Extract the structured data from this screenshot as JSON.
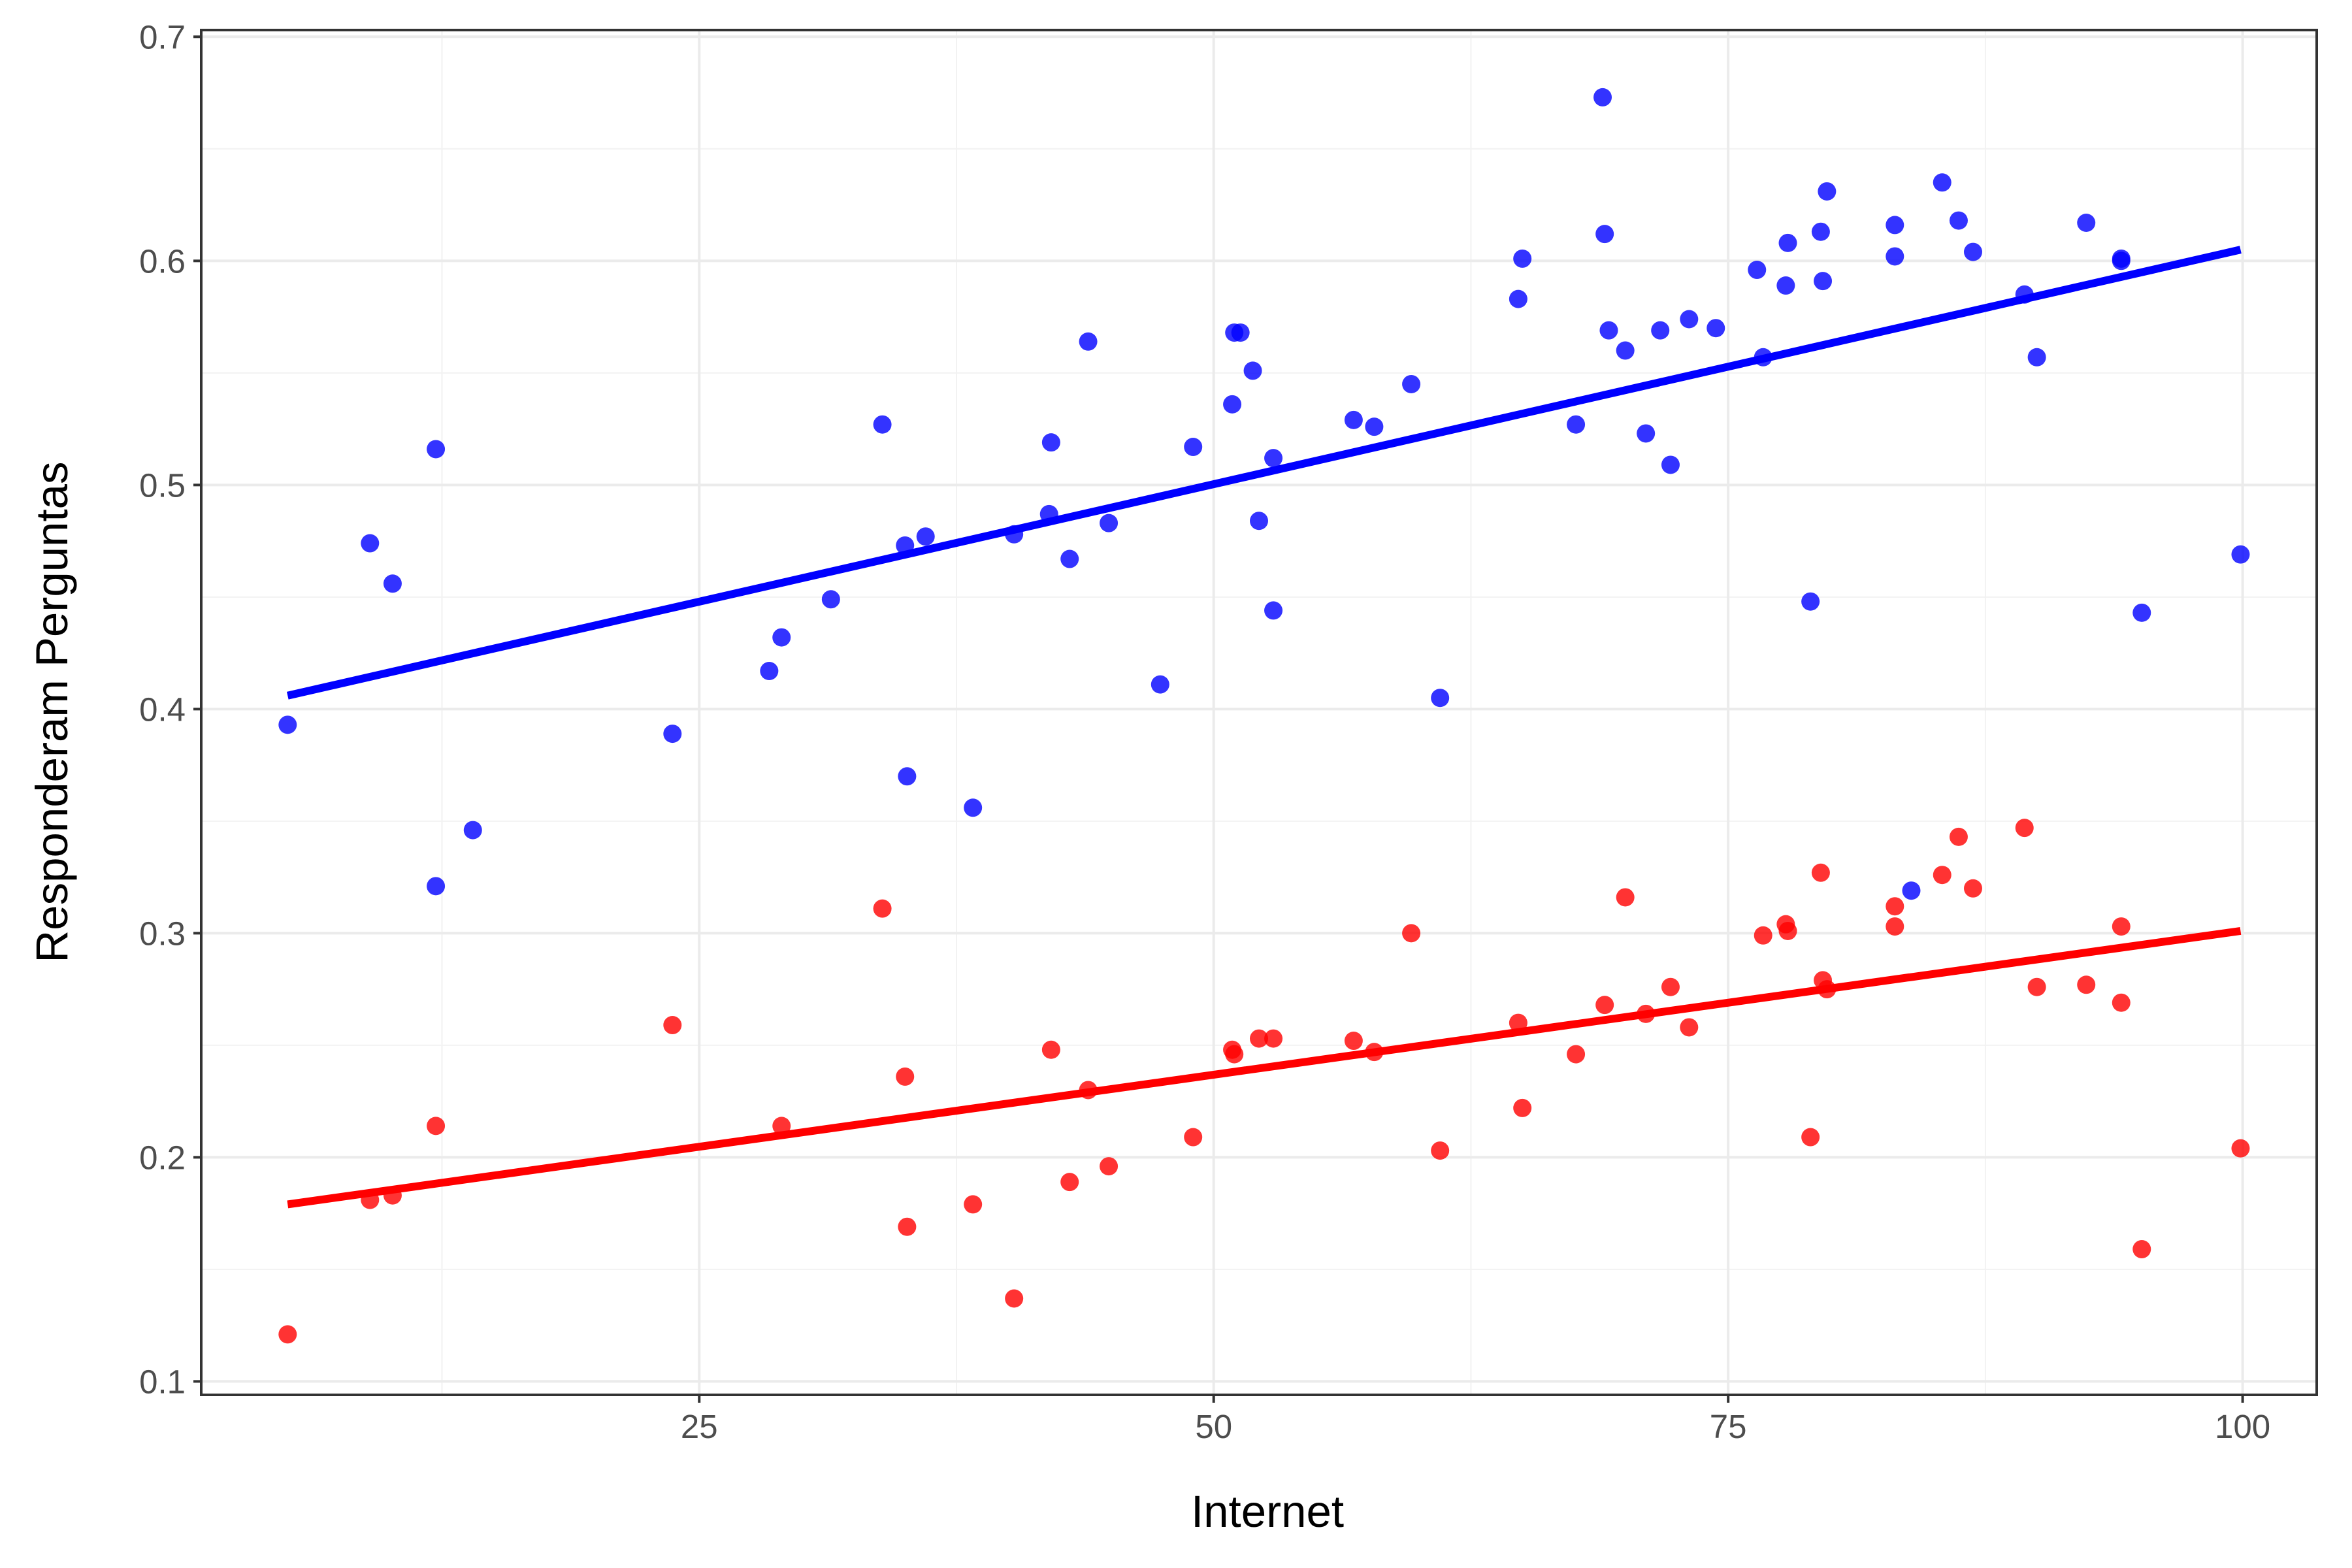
{
  "chart_data": {
    "type": "scatter",
    "title": "",
    "xlabel": "Internet",
    "ylabel": "Responderam Perguntas",
    "xlim": [
      0.8,
      103.6
    ],
    "ylim": [
      0.094,
      0.703
    ],
    "x_ticks": [
      25,
      50,
      75,
      100
    ],
    "y_ticks": [
      0.1,
      0.2,
      0.3,
      0.4,
      0.5,
      0.6,
      0.7
    ],
    "x_tick_labels": [
      "25",
      "50",
      "75",
      "100"
    ],
    "y_tick_labels": [
      "0.1",
      "0.2",
      "0.3",
      "0.4",
      "0.5",
      "0.6",
      "0.7"
    ],
    "grid": true,
    "legend": "none",
    "series": [
      {
        "color": "#0000ff",
        "points": [
          [
            5.0,
            0.393
          ],
          [
            9.0,
            0.474
          ],
          [
            10.1,
            0.456
          ],
          [
            12.2,
            0.516
          ],
          [
            12.2,
            0.321
          ],
          [
            14.0,
            0.346
          ],
          [
            23.7,
            0.389
          ],
          [
            28.4,
            0.417
          ],
          [
            29.0,
            0.432
          ],
          [
            31.4,
            0.449
          ],
          [
            33.9,
            0.527
          ],
          [
            35.0,
            0.473
          ],
          [
            35.1,
            0.37
          ],
          [
            36.0,
            0.477
          ],
          [
            38.3,
            0.356
          ],
          [
            40.3,
            0.478
          ],
          [
            42.1,
            0.519
          ],
          [
            42.0,
            0.487
          ],
          [
            43.0,
            0.467
          ],
          [
            43.9,
            0.564
          ],
          [
            44.9,
            0.483
          ],
          [
            47.4,
            0.411
          ],
          [
            49.0,
            0.517
          ],
          [
            50.9,
            0.536
          ],
          [
            51.0,
            0.568
          ],
          [
            51.3,
            0.568
          ],
          [
            51.9,
            0.551
          ],
          [
            52.2,
            0.484
          ],
          [
            52.9,
            0.512
          ],
          [
            52.9,
            0.444
          ],
          [
            56.8,
            0.529
          ],
          [
            57.8,
            0.526
          ],
          [
            59.6,
            0.545
          ],
          [
            61.0,
            0.405
          ],
          [
            64.8,
            0.583
          ],
          [
            65.0,
            0.601
          ],
          [
            67.6,
            0.527
          ],
          [
            68.9,
            0.673
          ],
          [
            69.0,
            0.612
          ],
          [
            69.2,
            0.569
          ],
          [
            70.0,
            0.56
          ],
          [
            71.0,
            0.523
          ],
          [
            71.7,
            0.569
          ],
          [
            72.2,
            0.509
          ],
          [
            73.1,
            0.574
          ],
          [
            74.4,
            0.57
          ],
          [
            76.4,
            0.596
          ],
          [
            76.7,
            0.557
          ],
          [
            77.8,
            0.589
          ],
          [
            77.9,
            0.608
          ],
          [
            79.0,
            0.448
          ],
          [
            79.5,
            0.613
          ],
          [
            79.6,
            0.591
          ],
          [
            79.8,
            0.631
          ],
          [
            83.1,
            0.616
          ],
          [
            83.1,
            0.602
          ],
          [
            83.9,
            0.319
          ],
          [
            85.4,
            0.635
          ],
          [
            86.2,
            0.618
          ],
          [
            86.9,
            0.604
          ],
          [
            89.4,
            0.585
          ],
          [
            90.0,
            0.557
          ],
          [
            92.4,
            0.617
          ],
          [
            94.1,
            0.601
          ],
          [
            94.1,
            0.6
          ],
          [
            95.1,
            0.443
          ],
          [
            99.9,
            0.469
          ]
        ],
        "fit": {
          "x": [
            5.0,
            99.9
          ],
          "y": [
            0.406,
            0.605
          ]
        }
      },
      {
        "color": "#ff0000",
        "points": [
          [
            5.0,
            0.121
          ],
          [
            9.0,
            0.181
          ],
          [
            10.1,
            0.183
          ],
          [
            12.2,
            0.214
          ],
          [
            23.7,
            0.259
          ],
          [
            29.0,
            0.214
          ],
          [
            33.9,
            0.311
          ],
          [
            35.0,
            0.236
          ],
          [
            35.1,
            0.169
          ],
          [
            38.3,
            0.179
          ],
          [
            40.3,
            0.137
          ],
          [
            42.1,
            0.248
          ],
          [
            43.0,
            0.189
          ],
          [
            43.9,
            0.23
          ],
          [
            44.9,
            0.196
          ],
          [
            49.0,
            0.209
          ],
          [
            50.9,
            0.248
          ],
          [
            51.0,
            0.246
          ],
          [
            52.2,
            0.253
          ],
          [
            52.9,
            0.253
          ],
          [
            56.8,
            0.252
          ],
          [
            57.8,
            0.247
          ],
          [
            59.6,
            0.3
          ],
          [
            61.0,
            0.203
          ],
          [
            64.8,
            0.26
          ],
          [
            65.0,
            0.222
          ],
          [
            67.6,
            0.246
          ],
          [
            69.0,
            0.268
          ],
          [
            70.0,
            0.316
          ],
          [
            71.0,
            0.264
          ],
          [
            72.2,
            0.276
          ],
          [
            73.1,
            0.258
          ],
          [
            76.7,
            0.299
          ],
          [
            77.8,
            0.304
          ],
          [
            77.9,
            0.301
          ],
          [
            79.0,
            0.209
          ],
          [
            79.5,
            0.327
          ],
          [
            79.6,
            0.279
          ],
          [
            79.8,
            0.275
          ],
          [
            83.1,
            0.312
          ],
          [
            83.1,
            0.303
          ],
          [
            85.4,
            0.326
          ],
          [
            86.2,
            0.343
          ],
          [
            86.9,
            0.32
          ],
          [
            89.4,
            0.347
          ],
          [
            90.0,
            0.276
          ],
          [
            92.4,
            0.277
          ],
          [
            94.1,
            0.303
          ],
          [
            94.1,
            0.269
          ],
          [
            95.1,
            0.159
          ],
          [
            99.9,
            0.204
          ]
        ],
        "fit": {
          "x": [
            5.0,
            99.9
          ],
          "y": [
            0.179,
            0.301
          ]
        }
      }
    ]
  }
}
